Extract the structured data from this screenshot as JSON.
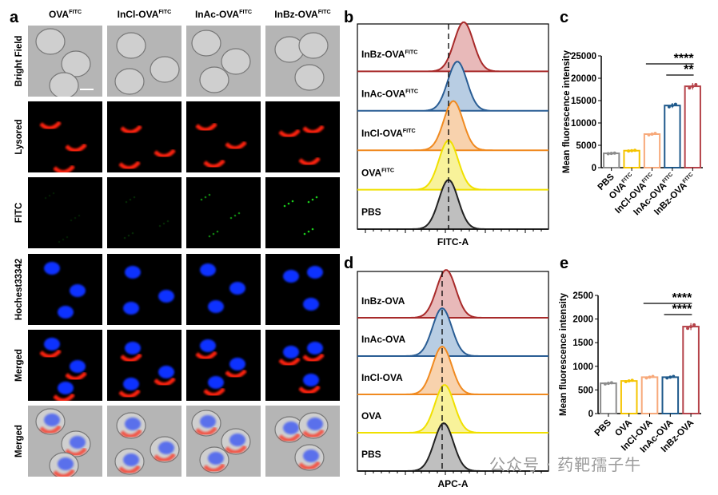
{
  "panel_labels": {
    "a": "a",
    "b": "b",
    "c": "c",
    "d": "d",
    "e": "e"
  },
  "panel_a": {
    "columns": [
      {
        "base": "OVA",
        "sup": "FITC"
      },
      {
        "base": "InCl-OVA",
        "sup": "FITC"
      },
      {
        "base": "InAc-OVA",
        "sup": "FITC"
      },
      {
        "base": "InBz-OVA",
        "sup": "FITC"
      }
    ],
    "rows": [
      "Bright Field",
      "Lysored",
      "FITC",
      "Hochest33342",
      "Merged",
      "Merged"
    ]
  },
  "panel_b": {
    "xlabel": "FITC-A",
    "tracks": [
      {
        "base": "InBz-OVA",
        "sup": "FITC",
        "color": "#a82a2a",
        "fill": "#e8b9b9"
      },
      {
        "base": "InAc-OVA",
        "sup": "FITC",
        "color": "#2a5d94",
        "fill": "#b8cde3"
      },
      {
        "base": "InCl-OVA",
        "sup": "FITC",
        "color": "#f08a20",
        "fill": "#f8d2ad"
      },
      {
        "base": "OVA",
        "sup": "FITC",
        "color": "#f0e000",
        "fill": "#f8f29a"
      },
      {
        "base": "PBS",
        "sup": "",
        "color": "#222222",
        "fill": "#bfbfbf"
      }
    ]
  },
  "panel_d": {
    "xlabel": "APC-A",
    "tracks": [
      {
        "base": "InBz-OVA",
        "sup": "",
        "color": "#a82a2a",
        "fill": "#e8b9b9"
      },
      {
        "base": "InAc-OVA",
        "sup": "",
        "color": "#2a5d94",
        "fill": "#b8cde3"
      },
      {
        "base": "InCl-OVA",
        "sup": "",
        "color": "#f08a20",
        "fill": "#f8d2ad"
      },
      {
        "base": "OVA",
        "sup": "",
        "color": "#f0e000",
        "fill": "#f8f29a"
      },
      {
        "base": "PBS",
        "sup": "",
        "color": "#222222",
        "fill": "#bfbfbf"
      }
    ]
  },
  "chart_data": [
    {
      "type": "bar",
      "panel": "c",
      "ylabel": "Mean fluorescence intensity",
      "ylim": [
        0,
        25000
      ],
      "yticks": [
        0,
        5000,
        10000,
        15000,
        20000,
        25000
      ],
      "categories": [
        {
          "base": "PBS",
          "sup": ""
        },
        {
          "base": "OVA",
          "sup": "FITC"
        },
        {
          "base": "InCl-OVA",
          "sup": "FITC"
        },
        {
          "base": "InAc-OVA",
          "sup": "FITC"
        },
        {
          "base": "InBz-OVA",
          "sup": "FITC"
        }
      ],
      "values": [
        3200,
        3800,
        7500,
        13900,
        18200
      ],
      "colors": [
        "#8c8c8c",
        "#f5c400",
        "#f7a97a",
        "#1f5a8c",
        "#b5434a"
      ],
      "significance": [
        {
          "from": 2,
          "to": 4,
          "label": "****"
        },
        {
          "from": 3,
          "to": 4,
          "label": "**"
        }
      ]
    },
    {
      "type": "bar",
      "panel": "e",
      "ylabel": "Mean fluorescence intensity",
      "ylim": [
        0,
        2500
      ],
      "yticks": [
        0,
        500,
        1000,
        1500,
        2000,
        2500
      ],
      "categories": [
        {
          "base": "PBS",
          "sup": ""
        },
        {
          "base": "OVA",
          "sup": ""
        },
        {
          "base": "InCl-OVA",
          "sup": ""
        },
        {
          "base": "InAc-OVA",
          "sup": ""
        },
        {
          "base": "InBz-OVA",
          "sup": ""
        }
      ],
      "values": [
        640,
        690,
        770,
        770,
        1840
      ],
      "colors": [
        "#8c8c8c",
        "#f5c400",
        "#f7a97a",
        "#1f5a8c",
        "#b5434a"
      ],
      "significance": [
        {
          "from": 2,
          "to": 4,
          "label": "****"
        },
        {
          "from": 3,
          "to": 4,
          "label": "****"
        }
      ]
    }
  ],
  "watermark": "公众号 · 药靶孺子牛"
}
